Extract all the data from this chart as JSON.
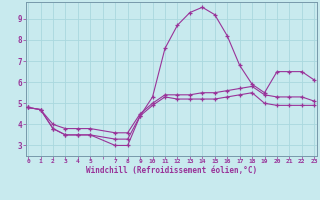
{
  "xlabel": "Windchill (Refroidissement éolien,°C)",
  "bg_color": "#c8eaee",
  "line_color": "#993399",
  "grid_color": "#aad8de",
  "border_color": "#7799aa",
  "x_ticks_labels": [
    "0",
    "1",
    "2",
    "3",
    "4",
    "5",
    "",
    "7",
    "8",
    "9",
    "10",
    "11",
    "12",
    "13",
    "14",
    "15",
    "16",
    "17",
    "18",
    "19",
    "20",
    "21",
    "22",
    "23"
  ],
  "x_ticks_pos": [
    0,
    1,
    2,
    3,
    4,
    5,
    6,
    7,
    8,
    9,
    10,
    11,
    12,
    13,
    14,
    15,
    16,
    17,
    18,
    19,
    20,
    21,
    22,
    23
  ],
  "y_ticks": [
    3,
    4,
    5,
    6,
    7,
    8,
    9
  ],
  "xlim": [
    -0.2,
    23.2
  ],
  "ylim": [
    2.5,
    9.8
  ],
  "line1_x": [
    0,
    1,
    2,
    3,
    4,
    5,
    7,
    8,
    9,
    10,
    11,
    12,
    13,
    14,
    15,
    16,
    17,
    18,
    19,
    20,
    21,
    22,
    23
  ],
  "line1_y": [
    4.8,
    4.7,
    3.8,
    3.5,
    3.5,
    3.5,
    3.3,
    3.3,
    4.4,
    4.9,
    5.3,
    5.2,
    5.2,
    5.2,
    5.2,
    5.3,
    5.4,
    5.5,
    5.0,
    4.9,
    4.9,
    4.9,
    4.9
  ],
  "line2_x": [
    0,
    1,
    2,
    3,
    4,
    5,
    7,
    8,
    9,
    10,
    11,
    12,
    13,
    14,
    15,
    16,
    17,
    18,
    19,
    20,
    21,
    22,
    23
  ],
  "line2_y": [
    4.8,
    4.7,
    3.8,
    3.5,
    3.5,
    3.5,
    3.0,
    3.0,
    4.4,
    5.3,
    7.6,
    8.7,
    9.3,
    9.55,
    9.2,
    8.2,
    6.8,
    5.9,
    5.5,
    6.5,
    6.5,
    6.5,
    6.1
  ],
  "line3_x": [
    0,
    1,
    2,
    3,
    4,
    5,
    7,
    8,
    9,
    10,
    11,
    12,
    13,
    14,
    15,
    16,
    17,
    18,
    19,
    20,
    21,
    22,
    23
  ],
  "line3_y": [
    4.8,
    4.7,
    4.0,
    3.8,
    3.8,
    3.8,
    3.6,
    3.6,
    4.5,
    5.0,
    5.4,
    5.4,
    5.4,
    5.5,
    5.5,
    5.6,
    5.7,
    5.8,
    5.4,
    5.3,
    5.3,
    5.3,
    5.1
  ]
}
